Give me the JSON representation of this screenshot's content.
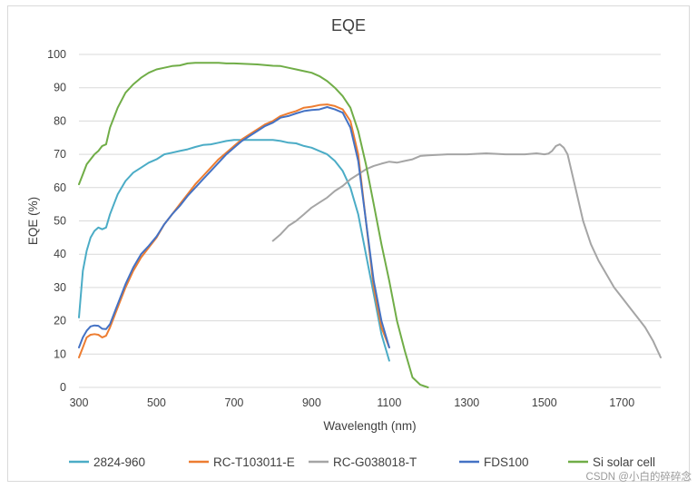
{
  "chart_data": {
    "type": "line",
    "title": "EQE",
    "xlabel": "Wavelength (nm)",
    "ylabel": "EQE (%)",
    "xlim": [
      300,
      1800
    ],
    "ylim": [
      0,
      100
    ],
    "grid": "horizontal",
    "legend_position": "bottom",
    "xticks": [
      "300",
      "500",
      "700",
      "900",
      "1100",
      "1300",
      "1500",
      "1700"
    ],
    "yticks": [
      "0",
      "10",
      "20",
      "30",
      "40",
      "50",
      "60",
      "70",
      "80",
      "90",
      "100"
    ],
    "series": [
      {
        "name": "2824-960",
        "color": "#4bacc6",
        "points": [
          [
            300,
            21
          ],
          [
            310,
            35
          ],
          [
            320,
            41
          ],
          [
            330,
            45
          ],
          [
            340,
            47
          ],
          [
            350,
            48
          ],
          [
            360,
            47.5
          ],
          [
            370,
            48
          ],
          [
            380,
            52
          ],
          [
            400,
            58
          ],
          [
            420,
            62
          ],
          [
            440,
            64.5
          ],
          [
            460,
            66
          ],
          [
            480,
            67.5
          ],
          [
            500,
            68.5
          ],
          [
            520,
            70
          ],
          [
            540,
            70.5
          ],
          [
            560,
            71
          ],
          [
            580,
            71.5
          ],
          [
            600,
            72.2
          ],
          [
            620,
            72.8
          ],
          [
            640,
            73
          ],
          [
            660,
            73.5
          ],
          [
            680,
            74
          ],
          [
            700,
            74.3
          ],
          [
            720,
            74.3
          ],
          [
            740,
            74.3
          ],
          [
            760,
            74.3
          ],
          [
            780,
            74.3
          ],
          [
            800,
            74.3
          ],
          [
            820,
            74
          ],
          [
            840,
            73.5
          ],
          [
            860,
            73.3
          ],
          [
            880,
            72.5
          ],
          [
            900,
            72
          ],
          [
            920,
            71
          ],
          [
            940,
            70
          ],
          [
            960,
            68
          ],
          [
            980,
            65
          ],
          [
            1000,
            60
          ],
          [
            1020,
            52
          ],
          [
            1040,
            40
          ],
          [
            1060,
            28
          ],
          [
            1080,
            16
          ],
          [
            1100,
            8
          ]
        ]
      },
      {
        "name": "RC-T103011-E",
        "color": "#ed7d31",
        "points": [
          [
            300,
            9
          ],
          [
            310,
            12
          ],
          [
            320,
            15
          ],
          [
            330,
            15.8
          ],
          [
            340,
            16
          ],
          [
            350,
            15.8
          ],
          [
            360,
            15
          ],
          [
            370,
            15.5
          ],
          [
            380,
            18
          ],
          [
            400,
            24
          ],
          [
            420,
            30
          ],
          [
            440,
            35
          ],
          [
            460,
            39
          ],
          [
            480,
            42
          ],
          [
            500,
            45
          ],
          [
            520,
            49
          ],
          [
            540,
            52
          ],
          [
            560,
            55
          ],
          [
            580,
            58
          ],
          [
            600,
            61
          ],
          [
            620,
            63.5
          ],
          [
            640,
            66
          ],
          [
            660,
            68.5
          ],
          [
            680,
            70.5
          ],
          [
            700,
            72.5
          ],
          [
            720,
            74.5
          ],
          [
            740,
            76
          ],
          [
            760,
            77.5
          ],
          [
            780,
            79
          ],
          [
            800,
            80
          ],
          [
            820,
            81.5
          ],
          [
            840,
            82.3
          ],
          [
            860,
            83
          ],
          [
            880,
            84
          ],
          [
            900,
            84.3
          ],
          [
            920,
            84.8
          ],
          [
            940,
            85
          ],
          [
            960,
            84.5
          ],
          [
            980,
            83.5
          ],
          [
            1000,
            80
          ],
          [
            1020,
            70
          ],
          [
            1040,
            50
          ],
          [
            1060,
            30
          ],
          [
            1080,
            18
          ],
          [
            1100,
            12
          ]
        ]
      },
      {
        "name": "RC-G038018-T",
        "color": "#a5a5a5",
        "points": [
          [
            800,
            44
          ],
          [
            820,
            46
          ],
          [
            840,
            48.5
          ],
          [
            860,
            50
          ],
          [
            880,
            52
          ],
          [
            900,
            54
          ],
          [
            920,
            55.5
          ],
          [
            940,
            57
          ],
          [
            960,
            59
          ],
          [
            980,
            60.5
          ],
          [
            1000,
            62.5
          ],
          [
            1020,
            64
          ],
          [
            1040,
            65.5
          ],
          [
            1060,
            66.5
          ],
          [
            1080,
            67.2
          ],
          [
            1100,
            67.8
          ],
          [
            1120,
            67.5
          ],
          [
            1140,
            68
          ],
          [
            1160,
            68.5
          ],
          [
            1180,
            69.5
          ],
          [
            1200,
            69.7
          ],
          [
            1250,
            70
          ],
          [
            1300,
            70
          ],
          [
            1350,
            70.3
          ],
          [
            1400,
            70
          ],
          [
            1450,
            70
          ],
          [
            1480,
            70.3
          ],
          [
            1500,
            70
          ],
          [
            1510,
            70.2
          ],
          [
            1520,
            71
          ],
          [
            1530,
            72.5
          ],
          [
            1540,
            73
          ],
          [
            1550,
            72
          ],
          [
            1560,
            70
          ],
          [
            1580,
            60
          ],
          [
            1600,
            50
          ],
          [
            1620,
            43
          ],
          [
            1640,
            38
          ],
          [
            1660,
            34
          ],
          [
            1680,
            30
          ],
          [
            1700,
            27
          ],
          [
            1720,
            24
          ],
          [
            1740,
            21
          ],
          [
            1760,
            18
          ],
          [
            1780,
            14
          ],
          [
            1800,
            9
          ]
        ]
      },
      {
        "name": "FDS100",
        "color": "#4472c4",
        "points": [
          [
            300,
            12
          ],
          [
            310,
            15
          ],
          [
            320,
            17
          ],
          [
            330,
            18.3
          ],
          [
            340,
            18.6
          ],
          [
            350,
            18.5
          ],
          [
            360,
            17.6
          ],
          [
            370,
            17.5
          ],
          [
            380,
            19
          ],
          [
            400,
            25
          ],
          [
            420,
            31
          ],
          [
            440,
            36
          ],
          [
            460,
            40
          ],
          [
            480,
            42.5
          ],
          [
            500,
            45.3
          ],
          [
            520,
            49
          ],
          [
            540,
            52
          ],
          [
            560,
            54.5
          ],
          [
            580,
            57.5
          ],
          [
            600,
            60
          ],
          [
            620,
            62.5
          ],
          [
            640,
            65
          ],
          [
            660,
            67.5
          ],
          [
            680,
            70
          ],
          [
            700,
            72
          ],
          [
            720,
            74
          ],
          [
            740,
            75.5
          ],
          [
            760,
            77
          ],
          [
            780,
            78.5
          ],
          [
            800,
            79.5
          ],
          [
            820,
            81
          ],
          [
            840,
            81.5
          ],
          [
            860,
            82.3
          ],
          [
            880,
            83
          ],
          [
            900,
            83.3
          ],
          [
            920,
            83.5
          ],
          [
            940,
            84.2
          ],
          [
            960,
            83.5
          ],
          [
            980,
            82.5
          ],
          [
            1000,
            78
          ],
          [
            1020,
            68
          ],
          [
            1040,
            50
          ],
          [
            1060,
            32
          ],
          [
            1080,
            20
          ],
          [
            1100,
            12
          ]
        ]
      },
      {
        "name": "Si solar cell",
        "color": "#70ad47",
        "points": [
          [
            300,
            61
          ],
          [
            310,
            64
          ],
          [
            320,
            67
          ],
          [
            340,
            70
          ],
          [
            350,
            71
          ],
          [
            360,
            72.5
          ],
          [
            370,
            73
          ],
          [
            380,
            78
          ],
          [
            400,
            84
          ],
          [
            420,
            88.5
          ],
          [
            440,
            91
          ],
          [
            460,
            93
          ],
          [
            480,
            94.5
          ],
          [
            500,
            95.5
          ],
          [
            520,
            96
          ],
          [
            540,
            96.5
          ],
          [
            560,
            96.7
          ],
          [
            580,
            97.3
          ],
          [
            600,
            97.5
          ],
          [
            620,
            97.5
          ],
          [
            640,
            97.5
          ],
          [
            660,
            97.5
          ],
          [
            680,
            97.3
          ],
          [
            700,
            97.3
          ],
          [
            720,
            97.2
          ],
          [
            740,
            97.1
          ],
          [
            760,
            97
          ],
          [
            780,
            96.8
          ],
          [
            800,
            96.6
          ],
          [
            820,
            96.5
          ],
          [
            840,
            96
          ],
          [
            860,
            95.5
          ],
          [
            880,
            95
          ],
          [
            900,
            94.5
          ],
          [
            920,
            93.5
          ],
          [
            940,
            92
          ],
          [
            960,
            90
          ],
          [
            980,
            87.5
          ],
          [
            1000,
            84
          ],
          [
            1020,
            77
          ],
          [
            1040,
            67
          ],
          [
            1060,
            55
          ],
          [
            1080,
            43
          ],
          [
            1100,
            32
          ],
          [
            1120,
            20
          ],
          [
            1140,
            11
          ],
          [
            1160,
            3
          ],
          [
            1180,
            0.8
          ],
          [
            1200,
            0
          ]
        ]
      }
    ]
  },
  "watermark": "CSDN @小白的碎碎念"
}
